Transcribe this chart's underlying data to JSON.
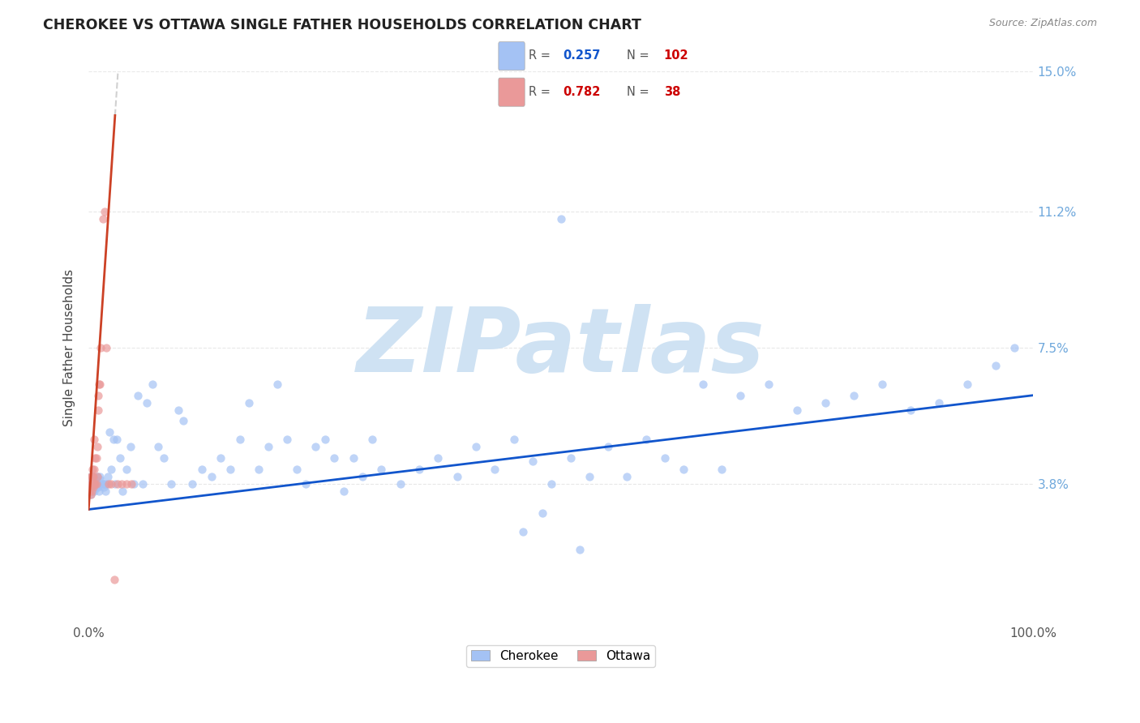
{
  "title": "CHEROKEE VS OTTAWA SINGLE FATHER HOUSEHOLDS CORRELATION CHART",
  "source": "Source: ZipAtlas.com",
  "ylabel": "Single Father Households",
  "xlim": [
    0,
    1.0
  ],
  "ylim": [
    0,
    0.15
  ],
  "ytick_positions": [
    0.038,
    0.075,
    0.112,
    0.15
  ],
  "yticklabels": [
    "3.8%",
    "7.5%",
    "11.2%",
    "15.0%"
  ],
  "cherokee_color": "#a4c2f4",
  "ottawa_color": "#ea9999",
  "cherokee_line_color": "#1155cc",
  "ottawa_line_color": "#cc4125",
  "dashed_color": "#cccccc",
  "cherokee_R": 0.257,
  "cherokee_N": 102,
  "ottawa_R": 0.782,
  "ottawa_N": 38,
  "watermark": "ZIPatlas",
  "watermark_color": "#cfe2f3",
  "cherokee_x": [
    0.001,
    0.002,
    0.002,
    0.003,
    0.003,
    0.004,
    0.004,
    0.005,
    0.005,
    0.006,
    0.006,
    0.007,
    0.007,
    0.008,
    0.008,
    0.009,
    0.009,
    0.01,
    0.01,
    0.011,
    0.012,
    0.013,
    0.014,
    0.015,
    0.016,
    0.017,
    0.018,
    0.019,
    0.02,
    0.022,
    0.024,
    0.026,
    0.028,
    0.03,
    0.033,
    0.036,
    0.04,
    0.044,
    0.048,
    0.052,
    0.057,
    0.062,
    0.068,
    0.074,
    0.08,
    0.087,
    0.095,
    0.1,
    0.11,
    0.12,
    0.13,
    0.14,
    0.15,
    0.16,
    0.17,
    0.18,
    0.19,
    0.2,
    0.21,
    0.22,
    0.23,
    0.24,
    0.25,
    0.26,
    0.27,
    0.28,
    0.29,
    0.3,
    0.31,
    0.33,
    0.35,
    0.37,
    0.39,
    0.41,
    0.43,
    0.45,
    0.47,
    0.49,
    0.51,
    0.53,
    0.55,
    0.57,
    0.59,
    0.61,
    0.63,
    0.65,
    0.67,
    0.69,
    0.72,
    0.75,
    0.78,
    0.81,
    0.84,
    0.87,
    0.9,
    0.93,
    0.96,
    0.98,
    0.5,
    0.48,
    0.46,
    0.52
  ],
  "cherokee_y": [
    0.038,
    0.04,
    0.035,
    0.038,
    0.037,
    0.038,
    0.036,
    0.04,
    0.037,
    0.038,
    0.036,
    0.039,
    0.038,
    0.038,
    0.037,
    0.04,
    0.038,
    0.038,
    0.037,
    0.036,
    0.04,
    0.039,
    0.038,
    0.038,
    0.037,
    0.038,
    0.036,
    0.038,
    0.04,
    0.052,
    0.042,
    0.05,
    0.038,
    0.05,
    0.045,
    0.036,
    0.042,
    0.048,
    0.038,
    0.062,
    0.038,
    0.06,
    0.065,
    0.048,
    0.045,
    0.038,
    0.058,
    0.055,
    0.038,
    0.042,
    0.04,
    0.045,
    0.042,
    0.05,
    0.06,
    0.042,
    0.048,
    0.065,
    0.05,
    0.042,
    0.038,
    0.048,
    0.05,
    0.045,
    0.036,
    0.045,
    0.04,
    0.05,
    0.042,
    0.038,
    0.042,
    0.045,
    0.04,
    0.048,
    0.042,
    0.05,
    0.044,
    0.038,
    0.045,
    0.04,
    0.048,
    0.04,
    0.05,
    0.045,
    0.042,
    0.065,
    0.042,
    0.062,
    0.065,
    0.058,
    0.06,
    0.062,
    0.065,
    0.058,
    0.06,
    0.065,
    0.07,
    0.075,
    0.11,
    0.03,
    0.025,
    0.02
  ],
  "ottawa_x": [
    0.001,
    0.001,
    0.002,
    0.002,
    0.002,
    0.003,
    0.003,
    0.003,
    0.004,
    0.004,
    0.004,
    0.005,
    0.005,
    0.005,
    0.006,
    0.006,
    0.006,
    0.007,
    0.007,
    0.008,
    0.008,
    0.009,
    0.009,
    0.01,
    0.01,
    0.011,
    0.012,
    0.013,
    0.015,
    0.017,
    0.019,
    0.021,
    0.024,
    0.027,
    0.031,
    0.035,
    0.04,
    0.045
  ],
  "ottawa_y": [
    0.038,
    0.036,
    0.04,
    0.037,
    0.035,
    0.038,
    0.04,
    0.036,
    0.042,
    0.038,
    0.04,
    0.038,
    0.037,
    0.04,
    0.042,
    0.038,
    0.05,
    0.045,
    0.038,
    0.045,
    0.038,
    0.048,
    0.04,
    0.062,
    0.058,
    0.065,
    0.065,
    0.075,
    0.11,
    0.112,
    0.075,
    0.038,
    0.038,
    0.012,
    0.038,
    0.038,
    0.038,
    0.038
  ],
  "cherokee_trend": [
    0.0,
    1.0,
    0.031,
    0.062
  ],
  "ottawa_solid_trend": [
    0.0,
    0.028,
    0.031,
    0.138
  ],
  "ottawa_dashed_trend": [
    0.028,
    0.22,
    0.138,
    0.35
  ],
  "background_color": "#ffffff",
  "grid_color": "#e8e8e8"
}
